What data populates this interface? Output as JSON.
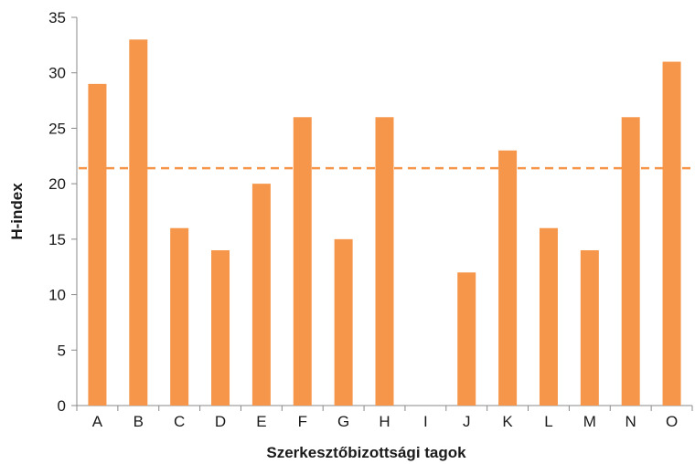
{
  "chart_data": {
    "type": "bar",
    "title": "",
    "xlabel": "Szerkesztőbizottsági tagok",
    "ylabel": "H-index",
    "categories": [
      "A",
      "B",
      "C",
      "D",
      "E",
      "F",
      "G",
      "H",
      "I",
      "J",
      "K",
      "L",
      "M",
      "N",
      "O"
    ],
    "series": [
      {
        "values": [
          29,
          33,
          16,
          14,
          20,
          26,
          15,
          26,
          null,
          12,
          23,
          16,
          14,
          26,
          31
        ]
      }
    ],
    "reference_line": {
      "value": 21.4,
      "style": "dashed"
    },
    "ylim": [
      0,
      35
    ],
    "yticks": [
      0,
      5,
      10,
      15,
      20,
      25,
      30,
      35
    ],
    "grid": false,
    "legend": "none",
    "colors": {
      "bar": "#f5964b",
      "reference_line": "#f5964b",
      "axis": "#888888",
      "text": "#1a1a1a"
    }
  }
}
